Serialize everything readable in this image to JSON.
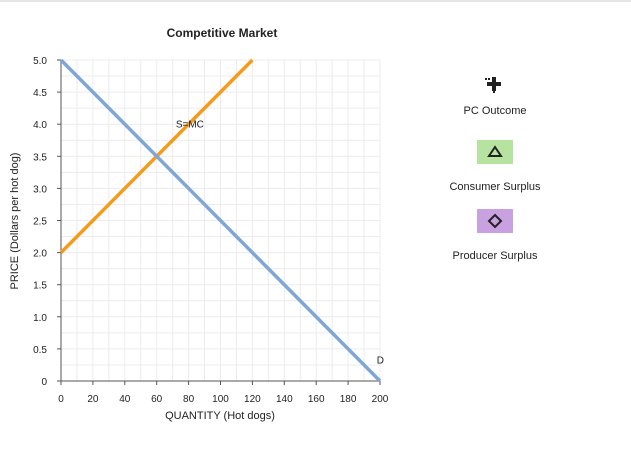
{
  "chart_data": {
    "type": "line",
    "title": "Competitive Market",
    "xlabel": "QUANTITY (Hot dogs)",
    "ylabel": "PRICE (Dollars per hot dog)",
    "xlim": [
      0,
      200
    ],
    "ylim": [
      0,
      5.0
    ],
    "x_ticks": [
      "0",
      "20",
      "40",
      "60",
      "80",
      "100",
      "120",
      "140",
      "160",
      "180",
      "200"
    ],
    "y_ticks": [
      "0",
      "0.5",
      "1.0",
      "1.5",
      "2.0",
      "2.5",
      "3.0",
      "3.5",
      "4.0",
      "4.5",
      "5.0"
    ],
    "grid": true,
    "series": [
      {
        "name": "S=MC",
        "color": "#f59a1b",
        "points": [
          [
            0,
            2.0
          ],
          [
            120,
            5.0
          ]
        ]
      },
      {
        "name": "D",
        "color": "#7ea7d8",
        "points": [
          [
            0,
            5.0
          ],
          [
            200,
            0
          ]
        ]
      }
    ]
  },
  "legend": {
    "pc_outcome": {
      "label": "PC Outcome",
      "icon": "plus-marker-icon",
      "color": "#222222"
    },
    "consumer_surplus": {
      "label": "Consumer Surplus",
      "icon": "triangle-icon",
      "color": "#b6e3a0"
    },
    "producer_surplus": {
      "label": "Producer Surplus",
      "icon": "diamond-icon",
      "color": "#c9a0e0"
    }
  }
}
